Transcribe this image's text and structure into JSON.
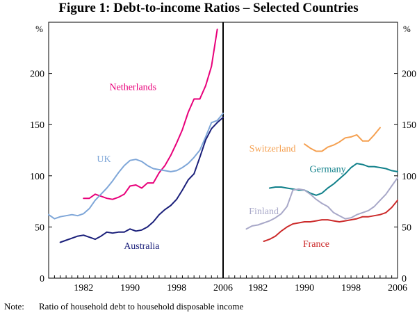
{
  "title": "Figure 1: Debt-to-income Ratios – Selected Countries",
  "note": {
    "label": "Note:",
    "text": "Ratio of household debt to household disposable income"
  },
  "colors": {
    "netherlands": "#e8007a",
    "uk": "#7ea6d8",
    "australia": "#1a1f7a",
    "switzerland": "#f5a050",
    "germany": "#10808a",
    "finland": "#a8a8c8",
    "france": "#cc2a2a"
  },
  "chart_data": [
    {
      "type": "line",
      "panel": "left",
      "ylabel": "%",
      "ylim": [
        0,
        250
      ],
      "yticks": [
        0,
        50,
        100,
        150,
        200
      ],
      "xlim": [
        1976,
        2006
      ],
      "xticks": [
        1982,
        1990,
        1998,
        2006
      ],
      "series": [
        {
          "name": "Netherlands",
          "key": "netherlands",
          "x": [
            1982,
            1983,
            1984,
            1985,
            1986,
            1987,
            1988,
            1989,
            1990,
            1991,
            1992,
            1993,
            1994,
            1995,
            1996,
            1997,
            1998,
            1999,
            2000,
            2001,
            2002,
            2003,
            2004,
            2005
          ],
          "y": [
            78,
            78,
            82,
            80,
            78,
            77,
            79,
            82,
            90,
            91,
            88,
            93,
            93,
            103,
            110,
            120,
            132,
            145,
            162,
            175,
            175,
            188,
            207,
            243
          ]
        },
        {
          "name": "UK",
          "key": "uk",
          "x": [
            1976,
            1977,
            1978,
            1979,
            1980,
            1981,
            1982,
            1983,
            1984,
            1985,
            1986,
            1987,
            1988,
            1989,
            1990,
            1991,
            1992,
            1993,
            1994,
            1995,
            1996,
            1997,
            1998,
            1999,
            2000,
            2001,
            2002,
            2003,
            2004,
            2005,
            2006
          ],
          "y": [
            62,
            58,
            60,
            61,
            62,
            61,
            63,
            68,
            76,
            82,
            88,
            95,
            103,
            110,
            115,
            116,
            114,
            110,
            107,
            106,
            105,
            104,
            105,
            108,
            112,
            118,
            125,
            138,
            152,
            154,
            161
          ]
        },
        {
          "name": "Australia",
          "key": "australia",
          "x": [
            1978,
            1979,
            1980,
            1981,
            1982,
            1983,
            1984,
            1985,
            1986,
            1987,
            1988,
            1989,
            1990,
            1991,
            1992,
            1993,
            1994,
            1995,
            1996,
            1997,
            1998,
            1999,
            2000,
            2001,
            2002,
            2003,
            2004,
            2005,
            2006
          ],
          "y": [
            35,
            37,
            39,
            41,
            42,
            40,
            38,
            41,
            45,
            44,
            45,
            45,
            48,
            46,
            47,
            50,
            55,
            62,
            67,
            71,
            77,
            86,
            96,
            102,
            118,
            135,
            146,
            152,
            157
          ]
        }
      ],
      "labels": [
        {
          "text": "Netherlands",
          "key": "netherlands",
          "x": 1990.5,
          "y": 187
        },
        {
          "text": "UK",
          "key": "uk",
          "x": 1985.5,
          "y": 117
        },
        {
          "text": "Australia",
          "key": "australia",
          "x": 1992,
          "y": 32
        }
      ]
    },
    {
      "type": "line",
      "panel": "right",
      "ylabel": "%",
      "ylim": [
        0,
        250
      ],
      "yticks": [
        0,
        50,
        100,
        150,
        200
      ],
      "xlim": [
        1976,
        2006
      ],
      "xticks": [
        1982,
        1990,
        1998,
        2006
      ],
      "series": [
        {
          "name": "Switzerland",
          "key": "switzerland",
          "x": [
            1990,
            1991,
            1992,
            1993,
            1994,
            1995,
            1996,
            1997,
            1998,
            1999,
            2000,
            2001,
            2002,
            2003
          ],
          "y": [
            131,
            127,
            124,
            124,
            128,
            130,
            133,
            137,
            138,
            140,
            134,
            134,
            140,
            147
          ]
        },
        {
          "name": "Germany",
          "key": "germany",
          "x": [
            1984,
            1985,
            1986,
            1987,
            1988,
            1989,
            1990,
            1991,
            1992,
            1993,
            1994,
            1995,
            1996,
            1997,
            1998,
            1999,
            2000,
            2001,
            2002,
            2003,
            2004,
            2005,
            2006
          ],
          "y": [
            88,
            89,
            89,
            88,
            87,
            86,
            86,
            83,
            81,
            83,
            88,
            92,
            97,
            102,
            108,
            112,
            111,
            109,
            109,
            108,
            107,
            105,
            104
          ]
        },
        {
          "name": "Finland",
          "key": "finland",
          "x": [
            1980,
            1981,
            1982,
            1983,
            1984,
            1985,
            1986,
            1987,
            1988,
            1989,
            1990,
            1991,
            1992,
            1993,
            1994,
            1995,
            1996,
            1997,
            1998,
            1999,
            2000,
            2001,
            2002,
            2003,
            2004,
            2005,
            2006
          ],
          "y": [
            48,
            51,
            52,
            54,
            56,
            59,
            63,
            70,
            86,
            87,
            86,
            82,
            77,
            73,
            70,
            64,
            61,
            58,
            59,
            62,
            64,
            66,
            70,
            76,
            82,
            90,
            98
          ]
        },
        {
          "name": "France",
          "key": "france",
          "x": [
            1983,
            1984,
            1985,
            1986,
            1987,
            1988,
            1989,
            1990,
            1991,
            1992,
            1993,
            1994,
            1995,
            1996,
            1997,
            1998,
            1999,
            2000,
            2001,
            2002,
            2003,
            2004,
            2005,
            2006
          ],
          "y": [
            36,
            38,
            41,
            46,
            50,
            53,
            54,
            55,
            55,
            56,
            57,
            57,
            56,
            55,
            56,
            57,
            58,
            60,
            60,
            61,
            62,
            64,
            69,
            76
          ]
        }
      ],
      "labels": [
        {
          "text": "Switzerland",
          "key": "switzerland",
          "x": 1984.5,
          "y": 127
        },
        {
          "text": "Germany",
          "key": "germany",
          "x": 1994,
          "y": 107
        },
        {
          "text": "Finland",
          "key": "finland",
          "x": 1983,
          "y": 66
        },
        {
          "text": "France",
          "key": "france",
          "x": 1992,
          "y": 34
        }
      ]
    }
  ]
}
